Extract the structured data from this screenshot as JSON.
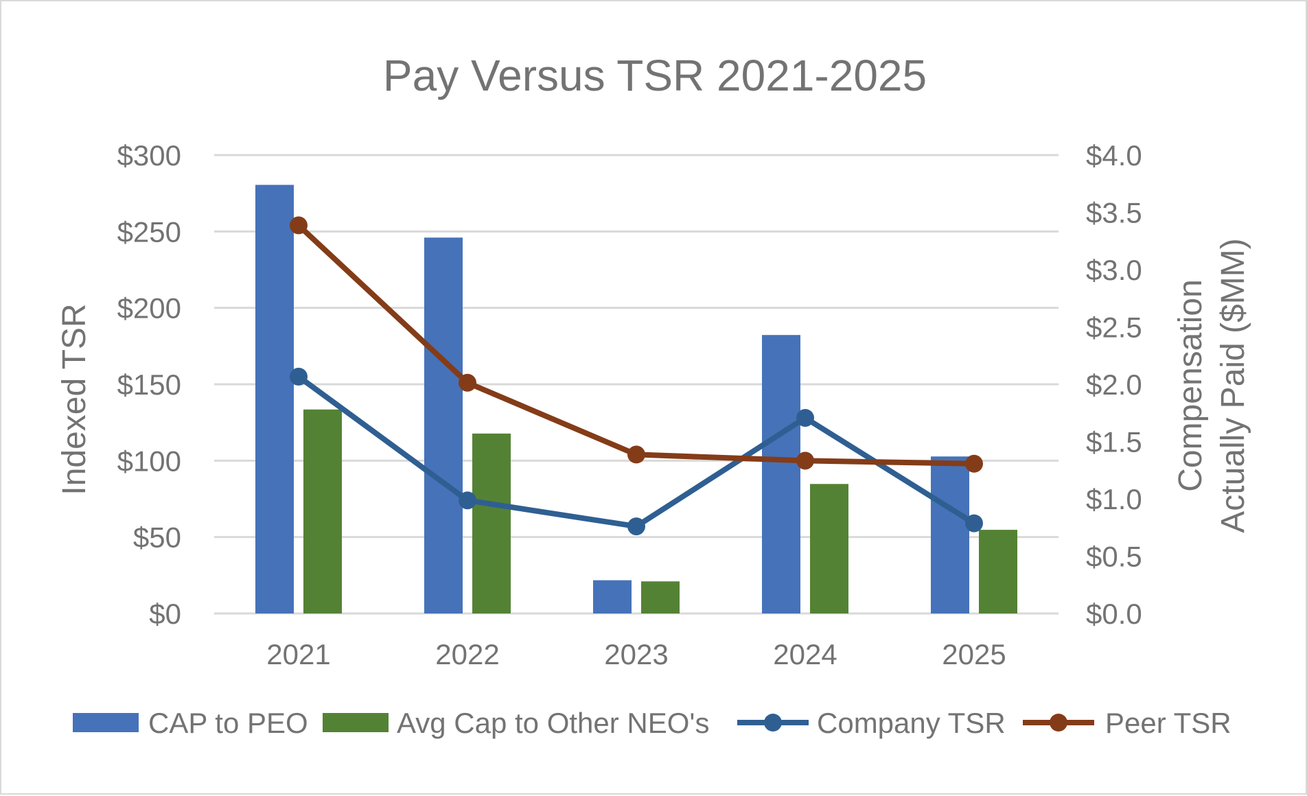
{
  "chart_data": {
    "type": "bar",
    "title": "Pay Versus TSR 2021-2025",
    "categories": [
      "2021",
      "2022",
      "2023",
      "2024",
      "2025"
    ],
    "left_axis": {
      "label": "Indexed TSR",
      "range": [
        0,
        300
      ],
      "ticks": [
        0,
        50,
        100,
        150,
        200,
        250,
        300
      ],
      "tick_labels": [
        "$0",
        "$50",
        "$100",
        "$150",
        "$200",
        "$250",
        "$300"
      ]
    },
    "right_axis": {
      "label_lines": [
        "Compensation",
        "Actually Paid ($MM)"
      ],
      "range": [
        0,
        4.0
      ],
      "ticks": [
        0,
        0.5,
        1.0,
        1.5,
        2.0,
        2.5,
        3.0,
        3.5,
        4.0
      ],
      "tick_labels": [
        "$0.0",
        "$0.5",
        "$1.0",
        "$1.5",
        "$2.0",
        "$2.5",
        "$3.0",
        "$3.5",
        "$4.0"
      ]
    },
    "grid": true,
    "legend_position": "bottom",
    "series": [
      {
        "name": "CAP to PEO",
        "kind": "bar",
        "axis": "right",
        "color": "#4672b9",
        "values": [
          3.74,
          3.28,
          0.29,
          2.43,
          1.37
        ]
      },
      {
        "name": "Avg Cap to Other NEO's",
        "kind": "bar",
        "axis": "right",
        "color": "#548235",
        "values": [
          1.78,
          1.57,
          0.28,
          1.13,
          0.73
        ]
      },
      {
        "name": "Company TSR",
        "kind": "line",
        "axis": "left",
        "color": "#2f5f92",
        "values": [
          155,
          74,
          57,
          128,
          59
        ]
      },
      {
        "name": "Peer TSR",
        "kind": "line",
        "axis": "left",
        "color": "#843c18",
        "values": [
          254,
          151,
          104,
          100,
          98
        ]
      }
    ]
  }
}
